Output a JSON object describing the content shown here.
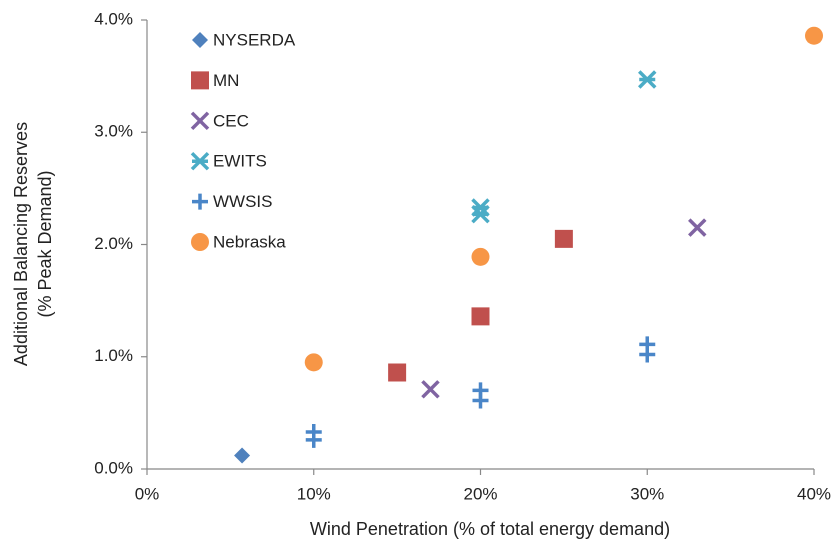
{
  "chart_data": {
    "type": "scatter",
    "xlabel": "Wind Penetration (% of total energy demand)",
    "ylabel": [
      "Additional Balancing Reserves",
      "(% Peak Demand)"
    ],
    "xlim": [
      0,
      40
    ],
    "ylim": [
      0,
      4
    ],
    "xticks": [
      {
        "value": 0,
        "label": "0%"
      },
      {
        "value": 10,
        "label": "10%"
      },
      {
        "value": 20,
        "label": "20%"
      },
      {
        "value": 30,
        "label": "30%"
      },
      {
        "value": 40,
        "label": "40%"
      }
    ],
    "yticks": [
      {
        "value": 0,
        "label": "0.0%"
      },
      {
        "value": 1,
        "label": "1.0%"
      },
      {
        "value": 2,
        "label": "2.0%"
      },
      {
        "value": 3,
        "label": "3.0%"
      },
      {
        "value": 4,
        "label": "4.0%"
      }
    ],
    "legend": "top-left",
    "series": [
      {
        "name": "NYSERDA",
        "color": "#4f81bd",
        "marker": "diamond",
        "x": [
          5.7
        ],
        "values": [
          0.12
        ]
      },
      {
        "name": "MN",
        "color": "#c0504d",
        "marker": "square",
        "x": [
          15,
          20,
          25
        ],
        "values": [
          0.86,
          1.36,
          2.05
        ]
      },
      {
        "name": "CEC",
        "color": "#8064a2",
        "marker": "x",
        "x": [
          17,
          33
        ],
        "values": [
          0.71,
          2.15
        ]
      },
      {
        "name": "EWITS",
        "color": "#4bacc6",
        "marker": "star",
        "x": [
          20,
          20,
          30
        ],
        "values": [
          2.33,
          2.27,
          3.47
        ]
      },
      {
        "name": "WWSIS",
        "color": "#4a86c8",
        "marker": "plus",
        "x": [
          10,
          10,
          20,
          20,
          30,
          30
        ],
        "values": [
          0.33,
          0.26,
          0.7,
          0.61,
          1.11,
          1.02
        ]
      },
      {
        "name": "Nebraska",
        "color": "#f79646",
        "marker": "circle",
        "x": [
          10,
          20,
          40
        ],
        "values": [
          0.95,
          1.89,
          3.86
        ]
      }
    ]
  }
}
